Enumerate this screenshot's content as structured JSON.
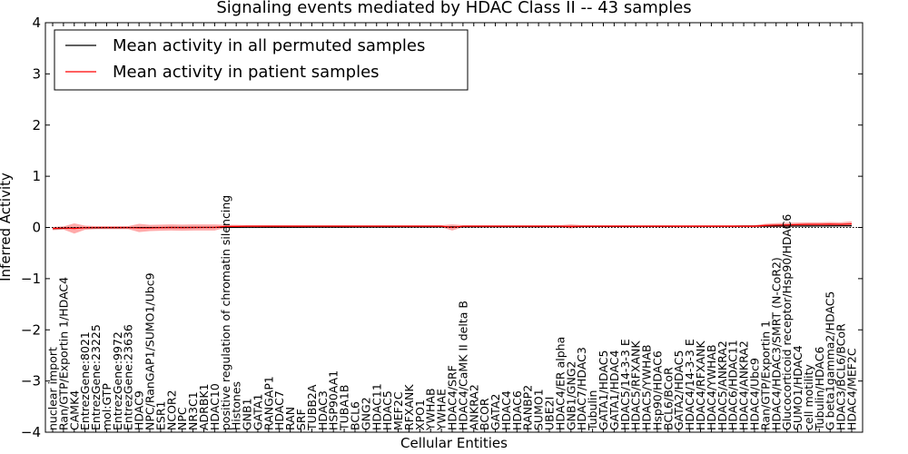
{
  "chart_data": {
    "type": "line",
    "title": "Signaling events mediated by HDAC Class II -- 43 samples",
    "xlabel": "Cellular Entities",
    "ylabel": "Inferred Activity",
    "ylim": [
      -4,
      4
    ],
    "yticks": [
      "4",
      "3",
      "2",
      "1",
      "0",
      "−1",
      "−2",
      "−3",
      "−4"
    ],
    "ytick_values": [
      4,
      3,
      2,
      1,
      0,
      -1,
      -2,
      -3,
      -4
    ],
    "legend": {
      "placement": "top-left",
      "entries": [
        {
          "label": "Mean activity in all permuted samples",
          "color": "#000000"
        },
        {
          "label": "Mean activity in patient samples",
          "color": "#ff0000"
        }
      ]
    },
    "categories": [
      "nuclear import",
      "Ran/GTP/Exportin 1/HDAC4",
      "CAMK4",
      "EntrezGene:8021",
      "EntrezGene:23225",
      "mol:GTP",
      "EntrezGene:9972",
      "EntrezGene:23636",
      "HDAC9",
      "NPC/RanGAP1/SUMO1/Ubc9",
      "ESR1",
      "NCOR2",
      "NPC",
      "NR3C1",
      "ADRBK1",
      "HDAC10",
      "positive regulation of chromatin silencing",
      "Histones",
      "GNB1",
      "GATA1",
      "RANGAP1",
      "HDAC7",
      "RAN",
      "SRF",
      "TUBB2A",
      "HDAC3",
      "HSP90AA1",
      "TUBA1B",
      "BCL6",
      "GNG2",
      "HDAC11",
      "HDAC5",
      "MEF2C",
      "RFXANK",
      "XPO1",
      "YWHAB",
      "YWHAE",
      "HDAC4/SRF",
      "HDAC4/CaMK II delta B",
      "ANKRA2",
      "BCOR",
      "GATA2",
      "HDAC4",
      "HDAC6",
      "RANBP2",
      "SUMO1",
      "UBE2I",
      "HDAC4/ER alpha",
      "GNB1/GNG2",
      "HDAC7/HDAC3",
      "Tubulin",
      "GATA1/HDAC5",
      "GATA1/HDAC4",
      "HDAC5/14-3-3 E",
      "HDAC5/RFXANK",
      "HDAC5/YWHAB",
      "Hsp90/HDAC6",
      "BCL6/BCoR",
      "GATA2/HDAC5",
      "HDAC4/14-3-3 E",
      "HDAC4/RFXANK",
      "HDAC4/YWHAB",
      "HDAC5/ANKRA2",
      "HDAC6/HDAC11",
      "HDAC4/ANKRA2",
      "HDAC4/Ubc9",
      "Ran/GTP/Exportin 1",
      "HDAC4/HDAC3/SMRT (N-CoR2)",
      "Glucocorticoid receptor/Hsp90/HDAC6",
      "SUMO1/HDAC4",
      "cell motility",
      "Tubulin/HDAC6",
      "G beta1gamma2/HDAC5",
      "HDAC3/BCL6/BCoR",
      "HDAC4/MEF2C"
    ],
    "series": [
      {
        "name": "Mean activity in all permuted samples",
        "color": "#000000",
        "values": [
          -0.02,
          -0.015,
          -0.01,
          -0.008,
          -0.006,
          -0.005,
          -0.004,
          -0.003,
          -0.002,
          -0.002,
          -0.001,
          0.0,
          0.0,
          0.0,
          0.001,
          0.001,
          0.002,
          0.002,
          0.003,
          0.003,
          0.004,
          0.004,
          0.005,
          0.005,
          0.006,
          0.006,
          0.007,
          0.007,
          0.008,
          0.008,
          0.009,
          0.009,
          0.01,
          0.01,
          0.011,
          0.011,
          0.012,
          0.012,
          0.013,
          0.013,
          0.014,
          0.014,
          0.015,
          0.015,
          0.016,
          0.016,
          0.017,
          0.017,
          0.018,
          0.018,
          0.019,
          0.019,
          0.02,
          0.02,
          0.021,
          0.021,
          0.022,
          0.022,
          0.023,
          0.023,
          0.024,
          0.024,
          0.025,
          0.025,
          0.026,
          0.026,
          0.027,
          0.027,
          0.028,
          0.028,
          0.029,
          0.03,
          0.031,
          0.032,
          0.033
        ],
        "band": [
          0.03,
          0.03,
          0.02,
          0.02,
          0.02,
          0.02,
          0.02,
          0.02,
          0.02,
          0.02,
          0.02,
          0.02,
          0.02,
          0.02,
          0.02,
          0.02,
          0.02,
          0.02,
          0.02,
          0.02,
          0.02,
          0.02,
          0.02,
          0.02,
          0.02,
          0.02,
          0.02,
          0.02,
          0.02,
          0.02,
          0.02,
          0.02,
          0.02,
          0.02,
          0.02,
          0.02,
          0.02,
          0.02,
          0.02,
          0.02,
          0.02,
          0.02,
          0.02,
          0.02,
          0.02,
          0.02,
          0.02,
          0.02,
          0.02,
          0.02,
          0.02,
          0.02,
          0.02,
          0.02,
          0.02,
          0.02,
          0.02,
          0.02,
          0.02,
          0.02,
          0.02,
          0.02,
          0.02,
          0.02,
          0.02,
          0.02,
          0.02,
          0.02,
          0.02,
          0.02,
          0.02,
          0.02,
          0.02,
          0.02,
          0.02
        ]
      },
      {
        "name": "Mean activity in patient samples",
        "color": "#ff0000",
        "values": [
          -0.02,
          -0.01,
          -0.02,
          -0.005,
          -0.003,
          -0.003,
          -0.003,
          -0.003,
          -0.01,
          -0.01,
          -0.005,
          0.0,
          -0.005,
          0.0,
          0.0,
          0.0,
          0.02,
          0.02,
          0.025,
          0.025,
          0.025,
          0.025,
          0.025,
          0.025,
          0.025,
          0.025,
          0.025,
          0.025,
          0.025,
          0.025,
          0.025,
          0.025,
          0.025,
          0.025,
          0.025,
          0.025,
          0.025,
          0.0,
          0.025,
          0.025,
          0.025,
          0.025,
          0.025,
          0.025,
          0.025,
          0.025,
          0.025,
          0.025,
          0.02,
          0.025,
          0.025,
          0.025,
          0.025,
          0.025,
          0.025,
          0.025,
          0.025,
          0.025,
          0.025,
          0.025,
          0.025,
          0.025,
          0.025,
          0.025,
          0.025,
          0.025,
          0.04,
          0.045,
          0.05,
          0.055,
          0.06,
          0.06,
          0.065,
          0.06,
          0.07
        ],
        "band": [
          0.03,
          0.03,
          0.1,
          0.04,
          0.03,
          0.03,
          0.03,
          0.03,
          0.08,
          0.06,
          0.06,
          0.06,
          0.06,
          0.06,
          0.06,
          0.06,
          0.03,
          0.03,
          0.02,
          0.02,
          0.02,
          0.02,
          0.02,
          0.02,
          0.02,
          0.02,
          0.02,
          0.02,
          0.02,
          0.02,
          0.02,
          0.02,
          0.02,
          0.02,
          0.02,
          0.02,
          0.02,
          0.06,
          0.02,
          0.02,
          0.02,
          0.02,
          0.02,
          0.02,
          0.02,
          0.02,
          0.02,
          0.02,
          0.04,
          0.02,
          0.02,
          0.02,
          0.02,
          0.02,
          0.02,
          0.02,
          0.02,
          0.02,
          0.02,
          0.02,
          0.02,
          0.02,
          0.02,
          0.02,
          0.02,
          0.02,
          0.03,
          0.04,
          0.04,
          0.04,
          0.04,
          0.04,
          0.04,
          0.04,
          0.05
        ]
      }
    ]
  }
}
